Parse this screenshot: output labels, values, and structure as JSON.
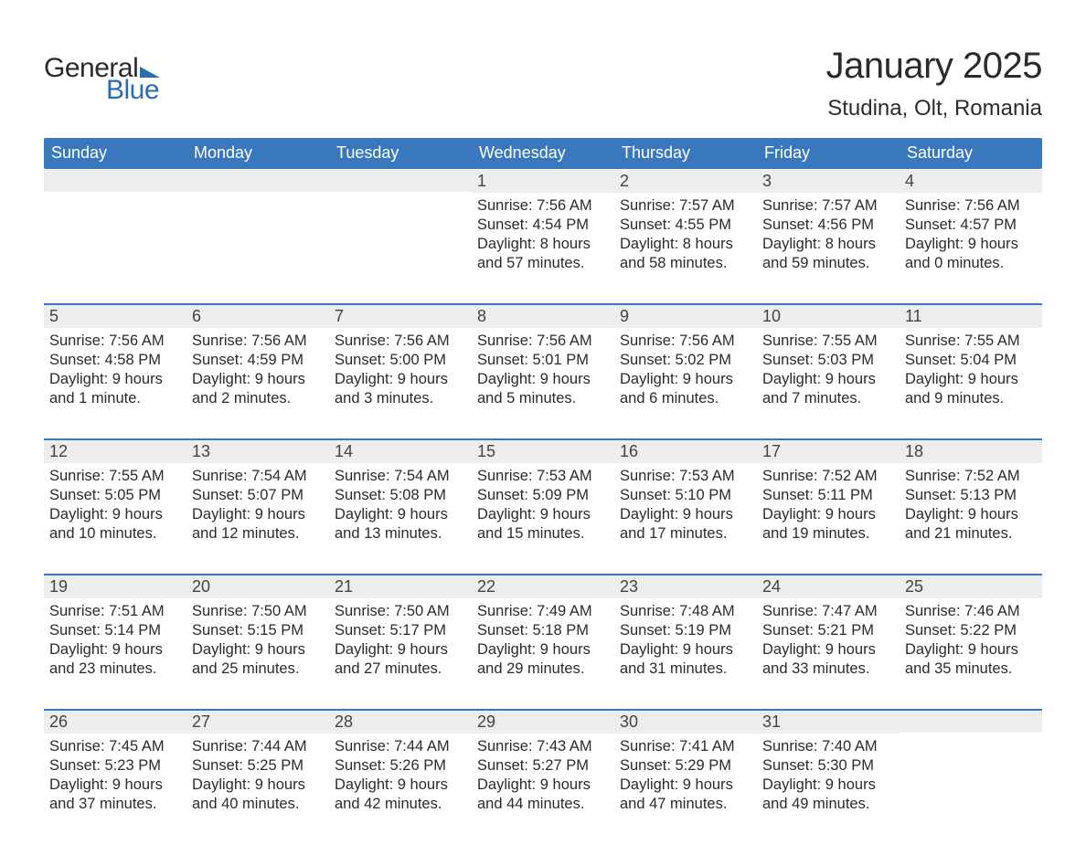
{
  "logo": {
    "word1": "General",
    "word2": "Blue"
  },
  "title": "January 2025",
  "location": "Studina, Olt, Romania",
  "colors": {
    "header_bg": "#3a78bd",
    "header_text": "#ffffff",
    "daynum_bg": "#ededed",
    "daynum_text": "#444444",
    "body_text": "#2b2b2b",
    "accent": "#2a6db5",
    "page_bg": "#ffffff"
  },
  "typography": {
    "title_fontsize": 40,
    "location_fontsize": 24,
    "weekday_fontsize": 18,
    "daynum_fontsize": 18,
    "body_fontsize": 16.5
  },
  "weekdays": [
    "Sunday",
    "Monday",
    "Tuesday",
    "Wednesday",
    "Thursday",
    "Friday",
    "Saturday"
  ],
  "weeks": [
    [
      {
        "day": "",
        "lines": []
      },
      {
        "day": "",
        "lines": []
      },
      {
        "day": "",
        "lines": []
      },
      {
        "day": "1",
        "lines": [
          "Sunrise: 7:56 AM",
          "Sunset: 4:54 PM",
          "Daylight: 8 hours",
          "and 57 minutes."
        ]
      },
      {
        "day": "2",
        "lines": [
          "Sunrise: 7:57 AM",
          "Sunset: 4:55 PM",
          "Daylight: 8 hours",
          "and 58 minutes."
        ]
      },
      {
        "day": "3",
        "lines": [
          "Sunrise: 7:57 AM",
          "Sunset: 4:56 PM",
          "Daylight: 8 hours",
          "and 59 minutes."
        ]
      },
      {
        "day": "4",
        "lines": [
          "Sunrise: 7:56 AM",
          "Sunset: 4:57 PM",
          "Daylight: 9 hours",
          "and 0 minutes."
        ]
      }
    ],
    [
      {
        "day": "5",
        "lines": [
          "Sunrise: 7:56 AM",
          "Sunset: 4:58 PM",
          "Daylight: 9 hours",
          "and 1 minute."
        ]
      },
      {
        "day": "6",
        "lines": [
          "Sunrise: 7:56 AM",
          "Sunset: 4:59 PM",
          "Daylight: 9 hours",
          "and 2 minutes."
        ]
      },
      {
        "day": "7",
        "lines": [
          "Sunrise: 7:56 AM",
          "Sunset: 5:00 PM",
          "Daylight: 9 hours",
          "and 3 minutes."
        ]
      },
      {
        "day": "8",
        "lines": [
          "Sunrise: 7:56 AM",
          "Sunset: 5:01 PM",
          "Daylight: 9 hours",
          "and 5 minutes."
        ]
      },
      {
        "day": "9",
        "lines": [
          "Sunrise: 7:56 AM",
          "Sunset: 5:02 PM",
          "Daylight: 9 hours",
          "and 6 minutes."
        ]
      },
      {
        "day": "10",
        "lines": [
          "Sunrise: 7:55 AM",
          "Sunset: 5:03 PM",
          "Daylight: 9 hours",
          "and 7 minutes."
        ]
      },
      {
        "day": "11",
        "lines": [
          "Sunrise: 7:55 AM",
          "Sunset: 5:04 PM",
          "Daylight: 9 hours",
          "and 9 minutes."
        ]
      }
    ],
    [
      {
        "day": "12",
        "lines": [
          "Sunrise: 7:55 AM",
          "Sunset: 5:05 PM",
          "Daylight: 9 hours",
          "and 10 minutes."
        ]
      },
      {
        "day": "13",
        "lines": [
          "Sunrise: 7:54 AM",
          "Sunset: 5:07 PM",
          "Daylight: 9 hours",
          "and 12 minutes."
        ]
      },
      {
        "day": "14",
        "lines": [
          "Sunrise: 7:54 AM",
          "Sunset: 5:08 PM",
          "Daylight: 9 hours",
          "and 13 minutes."
        ]
      },
      {
        "day": "15",
        "lines": [
          "Sunrise: 7:53 AM",
          "Sunset: 5:09 PM",
          "Daylight: 9 hours",
          "and 15 minutes."
        ]
      },
      {
        "day": "16",
        "lines": [
          "Sunrise: 7:53 AM",
          "Sunset: 5:10 PM",
          "Daylight: 9 hours",
          "and 17 minutes."
        ]
      },
      {
        "day": "17",
        "lines": [
          "Sunrise: 7:52 AM",
          "Sunset: 5:11 PM",
          "Daylight: 9 hours",
          "and 19 minutes."
        ]
      },
      {
        "day": "18",
        "lines": [
          "Sunrise: 7:52 AM",
          "Sunset: 5:13 PM",
          "Daylight: 9 hours",
          "and 21 minutes."
        ]
      }
    ],
    [
      {
        "day": "19",
        "lines": [
          "Sunrise: 7:51 AM",
          "Sunset: 5:14 PM",
          "Daylight: 9 hours",
          "and 23 minutes."
        ]
      },
      {
        "day": "20",
        "lines": [
          "Sunrise: 7:50 AM",
          "Sunset: 5:15 PM",
          "Daylight: 9 hours",
          "and 25 minutes."
        ]
      },
      {
        "day": "21",
        "lines": [
          "Sunrise: 7:50 AM",
          "Sunset: 5:17 PM",
          "Daylight: 9 hours",
          "and 27 minutes."
        ]
      },
      {
        "day": "22",
        "lines": [
          "Sunrise: 7:49 AM",
          "Sunset: 5:18 PM",
          "Daylight: 9 hours",
          "and 29 minutes."
        ]
      },
      {
        "day": "23",
        "lines": [
          "Sunrise: 7:48 AM",
          "Sunset: 5:19 PM",
          "Daylight: 9 hours",
          "and 31 minutes."
        ]
      },
      {
        "day": "24",
        "lines": [
          "Sunrise: 7:47 AM",
          "Sunset: 5:21 PM",
          "Daylight: 9 hours",
          "and 33 minutes."
        ]
      },
      {
        "day": "25",
        "lines": [
          "Sunrise: 7:46 AM",
          "Sunset: 5:22 PM",
          "Daylight: 9 hours",
          "and 35 minutes."
        ]
      }
    ],
    [
      {
        "day": "26",
        "lines": [
          "Sunrise: 7:45 AM",
          "Sunset: 5:23 PM",
          "Daylight: 9 hours",
          "and 37 minutes."
        ]
      },
      {
        "day": "27",
        "lines": [
          "Sunrise: 7:44 AM",
          "Sunset: 5:25 PM",
          "Daylight: 9 hours",
          "and 40 minutes."
        ]
      },
      {
        "day": "28",
        "lines": [
          "Sunrise: 7:44 AM",
          "Sunset: 5:26 PM",
          "Daylight: 9 hours",
          "and 42 minutes."
        ]
      },
      {
        "day": "29",
        "lines": [
          "Sunrise: 7:43 AM",
          "Sunset: 5:27 PM",
          "Daylight: 9 hours",
          "and 44 minutes."
        ]
      },
      {
        "day": "30",
        "lines": [
          "Sunrise: 7:41 AM",
          "Sunset: 5:29 PM",
          "Daylight: 9 hours",
          "and 47 minutes."
        ]
      },
      {
        "day": "31",
        "lines": [
          "Sunrise: 7:40 AM",
          "Sunset: 5:30 PM",
          "Daylight: 9 hours",
          "and 49 minutes."
        ]
      },
      {
        "day": "",
        "lines": []
      }
    ]
  ]
}
